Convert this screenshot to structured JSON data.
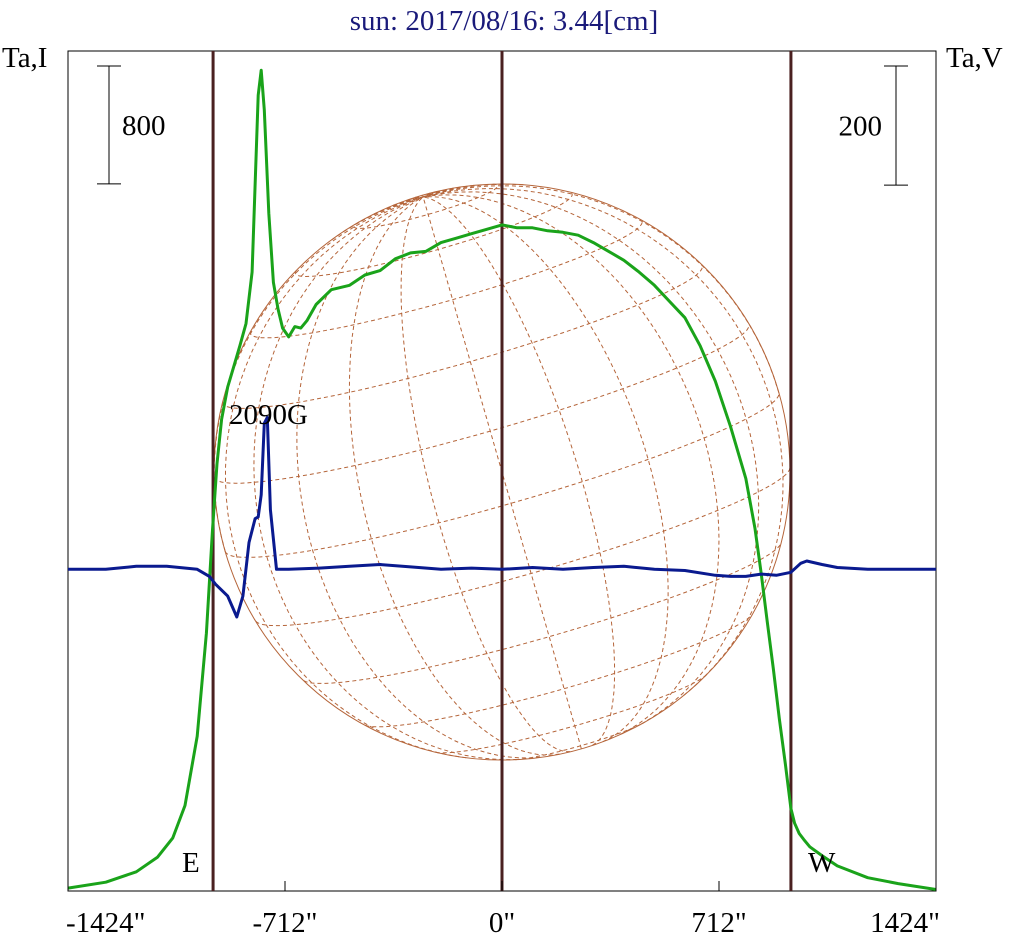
{
  "colors": {
    "title": "#1a1a7a",
    "intensity": "#1aa31a",
    "polarization": "#0a1a8f",
    "limb_lines": "#4a2020",
    "sun_grid": "#b5653a",
    "frame": "#000000"
  },
  "chart_data": {
    "type": "line",
    "title": "sun: 2017/08/16: 3.44[cm]",
    "ylabel_left": "Ta,I",
    "ylabel_right": "Ta,V",
    "xlim": [
      -1424,
      1424
    ],
    "x_ticks": [
      -1424,
      -712,
      0,
      712,
      1424
    ],
    "x_tick_labels": [
      "-1424\"",
      "-712\"",
      "0\"",
      "712\"",
      "1424\""
    ],
    "limb_markers": [
      -948,
      0,
      948
    ],
    "limb_labels": {
      "east": "E",
      "west": "W"
    },
    "scale_bars": [
      {
        "axis": "left",
        "label": "800",
        "value": 800
      },
      {
        "axis": "right",
        "label": "200",
        "value": 200
      }
    ],
    "left_axis_range": [
      0,
      5700
    ],
    "right_axis_range": [
      -540,
      870
    ],
    "annotations": [
      {
        "text": "2090G",
        "x": -800
      }
    ],
    "series": [
      {
        "key": "I",
        "x": [
          -1424,
          -1300,
          -1200,
          -1130,
          -1080,
          -1040,
          -1000,
          -970,
          -950,
          -935,
          -920,
          -900,
          -880,
          -860,
          -840,
          -820,
          -800,
          -790,
          -780,
          -765,
          -750,
          -735,
          -720,
          -700,
          -680,
          -660,
          -640,
          -610,
          -560,
          -500,
          -450,
          -400,
          -350,
          -300,
          -250,
          -200,
          -150,
          -100,
          -50,
          0,
          50,
          100,
          150,
          200,
          250,
          300,
          350,
          400,
          450,
          500,
          550,
          600,
          650,
          700,
          750,
          800,
          830,
          850,
          870,
          890,
          910,
          930,
          948,
          960,
          975,
          990,
          1010,
          1050,
          1100,
          1200,
          1300,
          1424
        ],
        "values": [
          20,
          60,
          130,
          230,
          360,
          580,
          1050,
          1750,
          2450,
          2900,
          3200,
          3420,
          3560,
          3700,
          3850,
          4200,
          5400,
          5570,
          5300,
          4600,
          4130,
          3950,
          3820,
          3760,
          3830,
          3820,
          3870,
          3980,
          4080,
          4110,
          4180,
          4210,
          4290,
          4330,
          4340,
          4400,
          4430,
          4460,
          4490,
          4520,
          4500,
          4500,
          4480,
          4470,
          4450,
          4400,
          4340,
          4280,
          4200,
          4110,
          4000,
          3890,
          3700,
          3460,
          3150,
          2800,
          2460,
          2160,
          1830,
          1510,
          1170,
          860,
          560,
          460,
          390,
          350,
          300,
          240,
          170,
          90,
          50,
          10
        ]
      },
      {
        "key": "V",
        "x": [
          -1424,
          -1300,
          -1200,
          -1100,
          -1000,
          -960,
          -940,
          -900,
          -870,
          -850,
          -830,
          -810,
          -800,
          -790,
          -780,
          -770,
          -760,
          -740,
          -700,
          -600,
          -500,
          -400,
          -300,
          -200,
          -100,
          0,
          100,
          200,
          300,
          400,
          500,
          600,
          700,
          750,
          800,
          850,
          900,
          948,
          980,
          1000,
          1050,
          1100,
          1200,
          1300,
          1424
        ],
        "values": [
          0,
          0,
          5,
          5,
          0,
          -12,
          -25,
          -45,
          -80,
          -45,
          45,
          85,
          88,
          125,
          245,
          255,
          100,
          0,
          0,
          2,
          5,
          8,
          4,
          0,
          2,
          0,
          3,
          0,
          3,
          5,
          0,
          -2,
          -10,
          -12,
          -12,
          -8,
          -10,
          -5,
          10,
          14,
          8,
          3,
          0,
          0,
          0
        ]
      }
    ]
  }
}
